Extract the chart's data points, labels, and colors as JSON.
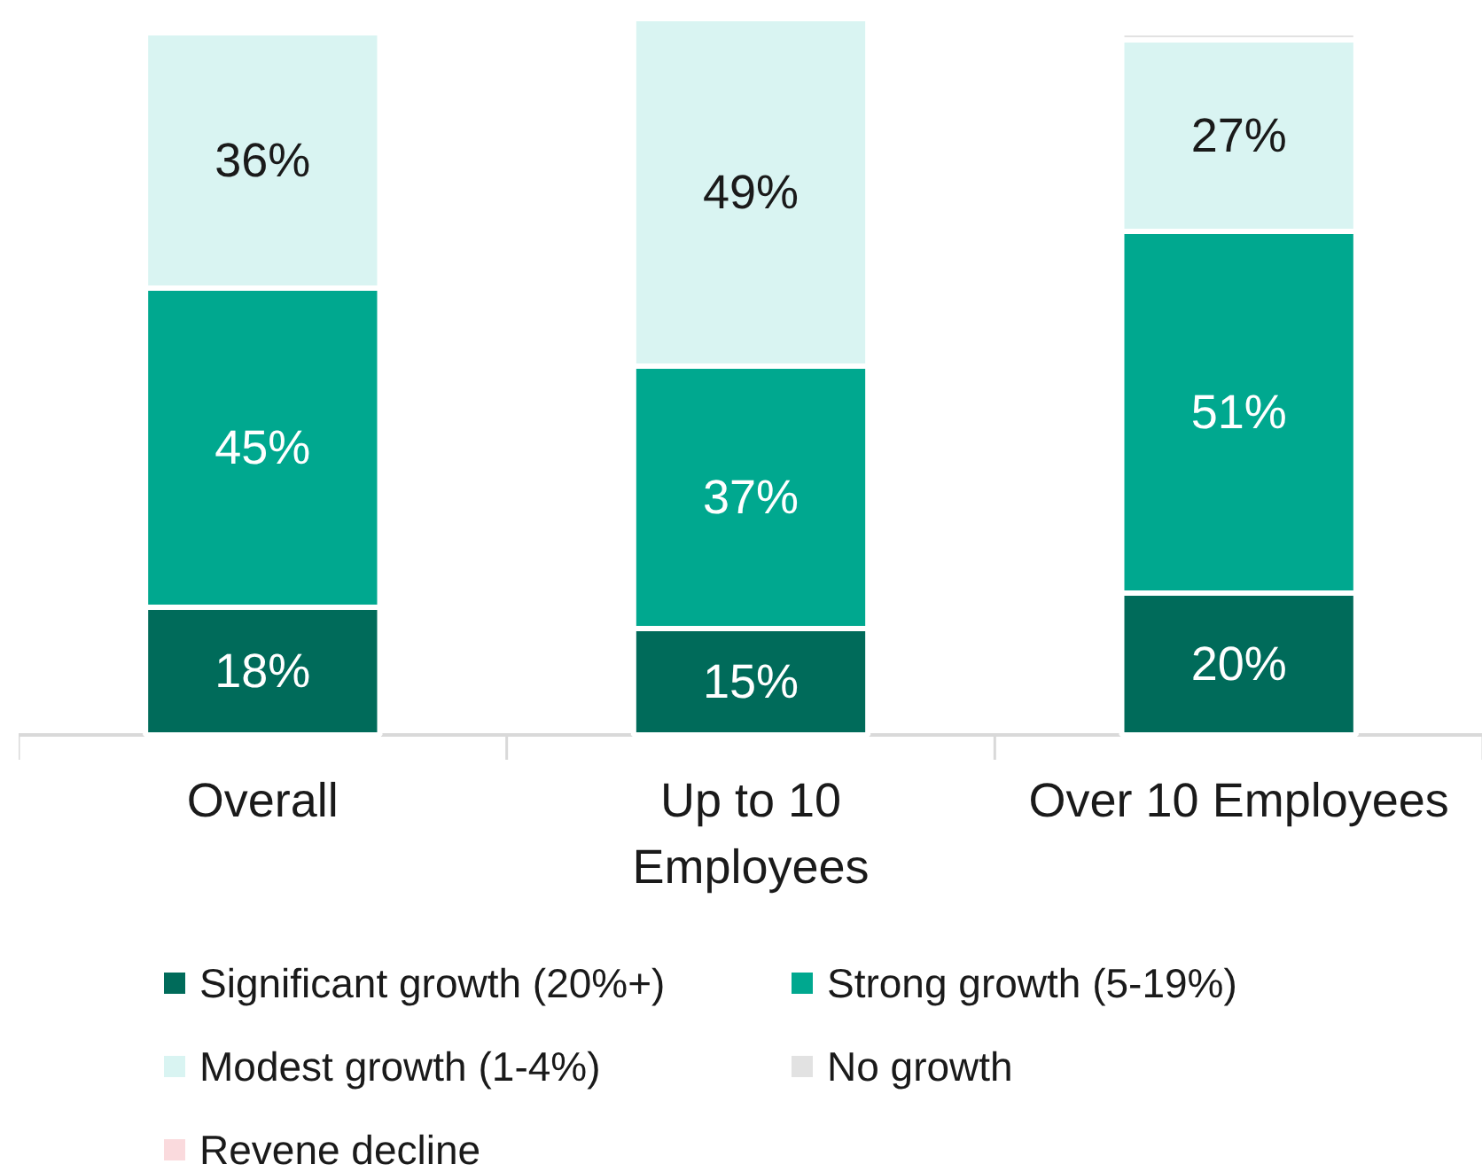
{
  "chart_data": {
    "type": "bar",
    "stacked": true,
    "categories": [
      "Overall",
      "Up to 10 Employees",
      "Over 10 Employees"
    ],
    "series": [
      {
        "name": "Significant growth (20%+)",
        "color": "#006b5a",
        "values": [
          18,
          15,
          20
        ],
        "value_labels": [
          "18%",
          "15%",
          "20%"
        ]
      },
      {
        "name": "Strong growth (5-19%)",
        "color": "#00a88f",
        "values": [
          45,
          37,
          51
        ],
        "value_labels": [
          "45%",
          "37%",
          "51%"
        ]
      },
      {
        "name": "Modest growth (1-4%)",
        "color": "#d9f4f2",
        "values": [
          36,
          49,
          27
        ],
        "value_labels": [
          "36%",
          "49%",
          "27%"
        ]
      },
      {
        "name": "No growth",
        "color": "#e2e2e2",
        "values": [
          0,
          0,
          1
        ],
        "value_labels": [
          null,
          null,
          null
        ]
      },
      {
        "name": "Revene decline",
        "color": "#fadadd",
        "values": [
          0,
          0,
          0
        ],
        "value_labels": [
          null,
          null,
          null
        ]
      }
    ],
    "legend": "bottom"
  }
}
